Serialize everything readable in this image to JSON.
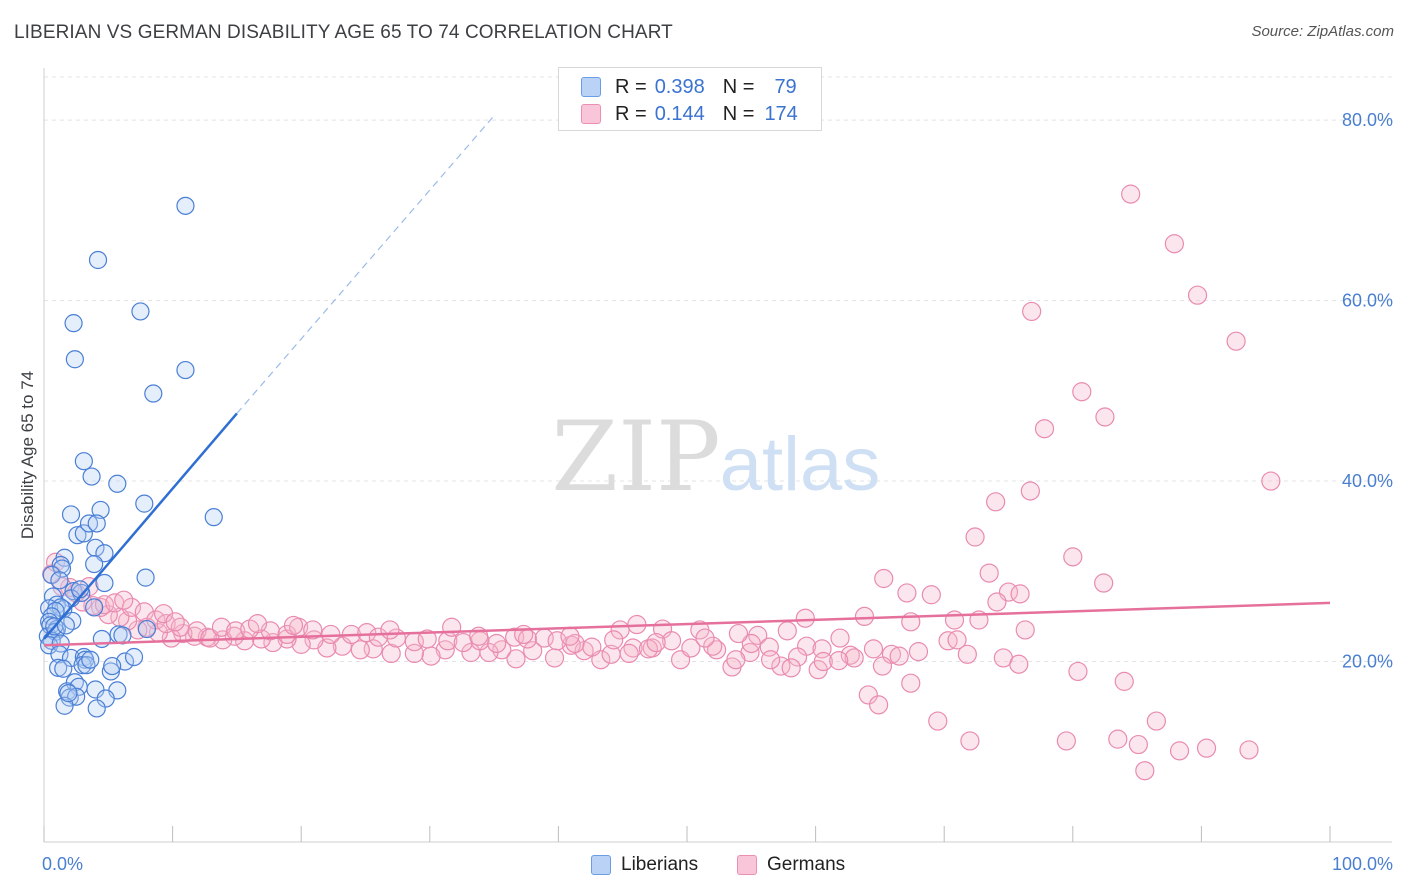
{
  "title": "LIBERIAN VS GERMAN DISABILITY AGE 65 TO 74 CORRELATION CHART",
  "source": "Source: ZipAtlas.com",
  "watermark": {
    "zip": "ZIP",
    "atlas": "atlas"
  },
  "legend_top": [
    {
      "r_label": "R =",
      "r_value": "0.398",
      "n_label": "N =",
      "n_value": "79",
      "color": "#4a86e8"
    },
    {
      "r_label": "R =",
      "r_value": "0.144",
      "n_label": "N =",
      "n_value": "174",
      "color": "#e8709c"
    }
  ],
  "legend_bottom": [
    {
      "label": "Liberians",
      "color": "#4a86e8"
    },
    {
      "label": "Germans",
      "color": "#e8709c"
    }
  ],
  "chart_data": {
    "type": "scatter",
    "xlabel": "",
    "ylabel": "Disability Age 65 to 74",
    "xlim": [
      0,
      100
    ],
    "ylim": [
      0,
      85
    ],
    "x_tick_labels": [
      "0.0%",
      "100.0%"
    ],
    "y_ticks": [
      20,
      40,
      60,
      80
    ],
    "y_tick_labels": [
      "20.0%",
      "40.0%",
      "60.0%",
      "80.0%"
    ],
    "grid": true,
    "legend_position": "top-center",
    "series": [
      {
        "name": "Liberians",
        "color": "#4a86e8",
        "trend": {
          "x0": 0,
          "y0": 22.5,
          "x1": 15,
          "y1": 47.5,
          "dash_to_x": 35,
          "dash_to_y": 80.5
        },
        "points": [
          [
            11,
            70.5
          ],
          [
            4.2,
            64.5
          ],
          [
            7.5,
            58.8
          ],
          [
            2.3,
            57.5
          ],
          [
            2.4,
            53.5
          ],
          [
            11,
            52.3
          ],
          [
            8.5,
            49.7
          ],
          [
            3.1,
            42.2
          ],
          [
            3.7,
            40.5
          ],
          [
            5.7,
            39.7
          ],
          [
            7.8,
            37.5
          ],
          [
            2.1,
            36.3
          ],
          [
            4.4,
            36.8
          ],
          [
            13.2,
            36.0
          ],
          [
            2.6,
            34.0
          ],
          [
            3.1,
            34.2
          ],
          [
            3.5,
            35.3
          ],
          [
            4.1,
            35.3
          ],
          [
            4.0,
            32.6
          ],
          [
            4.7,
            32.0
          ],
          [
            1.6,
            31.5
          ],
          [
            1.3,
            30.7
          ],
          [
            1.4,
            30.3
          ],
          [
            3.9,
            30.8
          ],
          [
            0.6,
            29.6
          ],
          [
            1.2,
            29.0
          ],
          [
            7.9,
            29.3
          ],
          [
            4.7,
            28.7
          ],
          [
            2.3,
            27.8
          ],
          [
            2.9,
            27.6
          ],
          [
            0.7,
            27.2
          ],
          [
            2.1,
            27.0
          ],
          [
            1.0,
            26.3
          ],
          [
            1.5,
            25.8
          ],
          [
            0.4,
            25.9
          ],
          [
            1.3,
            26.0
          ],
          [
            3.9,
            26.0
          ],
          [
            0.9,
            25.6
          ],
          [
            0.6,
            25.0
          ],
          [
            0.4,
            24.4
          ],
          [
            2.2,
            24.5
          ],
          [
            0.5,
            24.0
          ],
          [
            1.0,
            23.6
          ],
          [
            0.3,
            22.8
          ],
          [
            0.9,
            23.3
          ],
          [
            5.8,
            23.0
          ],
          [
            8.0,
            23.6
          ],
          [
            0.6,
            22.3
          ],
          [
            0.4,
            21.8
          ],
          [
            1.3,
            22.0
          ],
          [
            4.5,
            22.5
          ],
          [
            1.2,
            20.8
          ],
          [
            2.1,
            20.4
          ],
          [
            3.1,
            20.5
          ],
          [
            3.2,
            20.2
          ],
          [
            6.3,
            20.0
          ],
          [
            7.0,
            20.5
          ],
          [
            3.0,
            19.6
          ],
          [
            3.3,
            19.6
          ],
          [
            1.1,
            19.3
          ],
          [
            1.5,
            19.2
          ],
          [
            5.2,
            18.9
          ],
          [
            5.3,
            19.5
          ],
          [
            2.4,
            17.7
          ],
          [
            1.8,
            16.7
          ],
          [
            2.7,
            17.2
          ],
          [
            4.0,
            16.9
          ],
          [
            5.7,
            16.8
          ],
          [
            2.0,
            16.0
          ],
          [
            2.5,
            16.1
          ],
          [
            4.8,
            15.9
          ],
          [
            1.6,
            15.1
          ],
          [
            4.1,
            14.8
          ],
          [
            1.9,
            16.5
          ],
          [
            3.6,
            20.2
          ],
          [
            2.8,
            28.0
          ],
          [
            0.8,
            23.9
          ],
          [
            1.7,
            24.0
          ],
          [
            6.1,
            22.9
          ]
        ]
      },
      {
        "name": "Germans",
        "color": "#e8709c",
        "trend": {
          "x0": 0,
          "y0": 21.8,
          "x1": 100,
          "y1": 26.5
        },
        "points": [
          [
            84.5,
            71.8
          ],
          [
            87.9,
            66.3
          ],
          [
            89.7,
            60.6
          ],
          [
            92.7,
            55.5
          ],
          [
            76.8,
            58.8
          ],
          [
            80.7,
            49.9
          ],
          [
            82.5,
            47.1
          ],
          [
            77.8,
            45.8
          ],
          [
            95.4,
            40.0
          ],
          [
            76.7,
            38.9
          ],
          [
            74.0,
            37.7
          ],
          [
            72.4,
            33.8
          ],
          [
            80.0,
            31.6
          ],
          [
            73.5,
            29.8
          ],
          [
            65.3,
            29.2
          ],
          [
            82.4,
            28.7
          ],
          [
            67.1,
            27.6
          ],
          [
            69.0,
            27.4
          ],
          [
            75.0,
            27.7
          ],
          [
            75.9,
            27.5
          ],
          [
            74.1,
            26.6
          ],
          [
            76.3,
            23.5
          ],
          [
            67.4,
            24.4
          ],
          [
            70.8,
            24.6
          ],
          [
            72.7,
            24.6
          ],
          [
            63.8,
            25.0
          ],
          [
            59.2,
            24.8
          ],
          [
            46.1,
            24.1
          ],
          [
            51.0,
            23.5
          ],
          [
            55.5,
            22.9
          ],
          [
            61.9,
            22.6
          ],
          [
            70.3,
            22.3
          ],
          [
            71.0,
            22.4
          ],
          [
            59.3,
            21.7
          ],
          [
            60.5,
            21.4
          ],
          [
            62.7,
            20.7
          ],
          [
            65.9,
            20.8
          ],
          [
            68.0,
            21.1
          ],
          [
            71.8,
            20.8
          ],
          [
            74.6,
            20.4
          ],
          [
            56.4,
            21.6
          ],
          [
            58.6,
            20.5
          ],
          [
            57.3,
            19.5
          ],
          [
            60.2,
            19.1
          ],
          [
            63.0,
            20.4
          ],
          [
            65.2,
            19.5
          ],
          [
            67.4,
            17.6
          ],
          [
            75.8,
            19.7
          ],
          [
            80.4,
            18.9
          ],
          [
            84.0,
            17.8
          ],
          [
            64.1,
            16.3
          ],
          [
            64.9,
            15.2
          ],
          [
            69.5,
            13.4
          ],
          [
            72.0,
            11.2
          ],
          [
            79.5,
            11.2
          ],
          [
            83.5,
            11.4
          ],
          [
            85.1,
            10.8
          ],
          [
            86.5,
            13.4
          ],
          [
            88.3,
            10.1
          ],
          [
            90.4,
            10.4
          ],
          [
            93.7,
            10.2
          ],
          [
            85.6,
            7.9
          ],
          [
            48.1,
            23.6
          ],
          [
            47.3,
            21.5
          ],
          [
            49.5,
            20.2
          ],
          [
            52.3,
            21.3
          ],
          [
            53.5,
            19.4
          ],
          [
            54.9,
            21.0
          ],
          [
            44.8,
            23.5
          ],
          [
            45.8,
            21.5
          ],
          [
            43.3,
            20.2
          ],
          [
            42.0,
            21.2
          ],
          [
            41.0,
            21.8
          ],
          [
            39.7,
            20.4
          ],
          [
            38.0,
            21.2
          ],
          [
            36.7,
            20.3
          ],
          [
            35.6,
            21.3
          ],
          [
            34.6,
            21.0
          ],
          [
            33.2,
            21.0
          ],
          [
            31.2,
            21.3
          ],
          [
            30.1,
            20.6
          ],
          [
            28.8,
            20.9
          ],
          [
            27.0,
            20.9
          ],
          [
            25.6,
            21.4
          ],
          [
            24.6,
            21.3
          ],
          [
            23.2,
            21.7
          ],
          [
            22.0,
            21.5
          ],
          [
            21.0,
            22.4
          ],
          [
            20.0,
            21.9
          ],
          [
            18.9,
            22.5
          ],
          [
            17.8,
            22.1
          ],
          [
            16.9,
            22.5
          ],
          [
            15.6,
            22.3
          ],
          [
            14.8,
            22.8
          ],
          [
            13.9,
            22.4
          ],
          [
            12.7,
            22.7
          ],
          [
            11.7,
            22.8
          ],
          [
            10.8,
            23.1
          ],
          [
            9.9,
            22.6
          ],
          [
            8.9,
            23.2
          ],
          [
            8.0,
            23.8
          ],
          [
            7.3,
            23.5
          ],
          [
            6.5,
            24.5
          ],
          [
            5.9,
            24.9
          ],
          [
            5.0,
            25.2
          ],
          [
            4.4,
            26.0
          ],
          [
            3.8,
            26.2
          ],
          [
            3.0,
            26.6
          ],
          [
            2.5,
            27.6
          ],
          [
            2.0,
            28.2
          ],
          [
            1.4,
            28.3
          ],
          [
            0.6,
            29.7
          ],
          [
            0.9,
            31.0
          ],
          [
            4.7,
            26.3
          ],
          [
            5.5,
            26.5
          ],
          [
            6.8,
            26.0
          ],
          [
            7.8,
            25.5
          ],
          [
            8.7,
            24.6
          ],
          [
            9.5,
            24.2
          ],
          [
            10.6,
            23.8
          ],
          [
            11.9,
            23.4
          ],
          [
            12.9,
            22.6
          ],
          [
            13.8,
            23.8
          ],
          [
            14.9,
            23.4
          ],
          [
            16.0,
            23.6
          ],
          [
            17.6,
            23.4
          ],
          [
            18.9,
            23.0
          ],
          [
            19.8,
            23.8
          ],
          [
            20.9,
            23.5
          ],
          [
            22.3,
            23.0
          ],
          [
            23.9,
            23.0
          ],
          [
            25.1,
            23.2
          ],
          [
            26.0,
            22.7
          ],
          [
            27.4,
            22.6
          ],
          [
            28.8,
            22.2
          ],
          [
            29.8,
            22.5
          ],
          [
            31.4,
            22.3
          ],
          [
            32.6,
            22.1
          ],
          [
            33.9,
            22.3
          ],
          [
            35.2,
            22.0
          ],
          [
            36.6,
            22.7
          ],
          [
            37.6,
            22.5
          ],
          [
            38.9,
            22.6
          ],
          [
            39.9,
            22.3
          ],
          [
            41.3,
            22.0
          ],
          [
            42.6,
            21.6
          ],
          [
            44.1,
            20.8
          ],
          [
            45.5,
            20.9
          ],
          [
            47.0,
            21.4
          ],
          [
            48.8,
            22.3
          ],
          [
            50.3,
            21.5
          ],
          [
            52.0,
            21.7
          ],
          [
            53.8,
            20.2
          ],
          [
            55.0,
            22.0
          ],
          [
            56.5,
            20.2
          ],
          [
            58.1,
            19.3
          ],
          [
            60.6,
            20.0
          ],
          [
            61.8,
            20.1
          ],
          [
            64.5,
            21.4
          ],
          [
            66.5,
            20.6
          ],
          [
            3.5,
            28.3
          ],
          [
            6.2,
            26.8
          ],
          [
            9.3,
            25.3
          ],
          [
            10.2,
            24.4
          ],
          [
            16.6,
            24.2
          ],
          [
            19.4,
            24.0
          ],
          [
            26.9,
            23.5
          ],
          [
            31.7,
            23.8
          ],
          [
            33.8,
            22.8
          ],
          [
            37.3,
            23.0
          ],
          [
            40.9,
            22.8
          ],
          [
            44.3,
            22.4
          ],
          [
            47.6,
            22.1
          ],
          [
            51.4,
            22.6
          ],
          [
            54.0,
            23.1
          ],
          [
            57.8,
            23.4
          ]
        ]
      }
    ]
  }
}
